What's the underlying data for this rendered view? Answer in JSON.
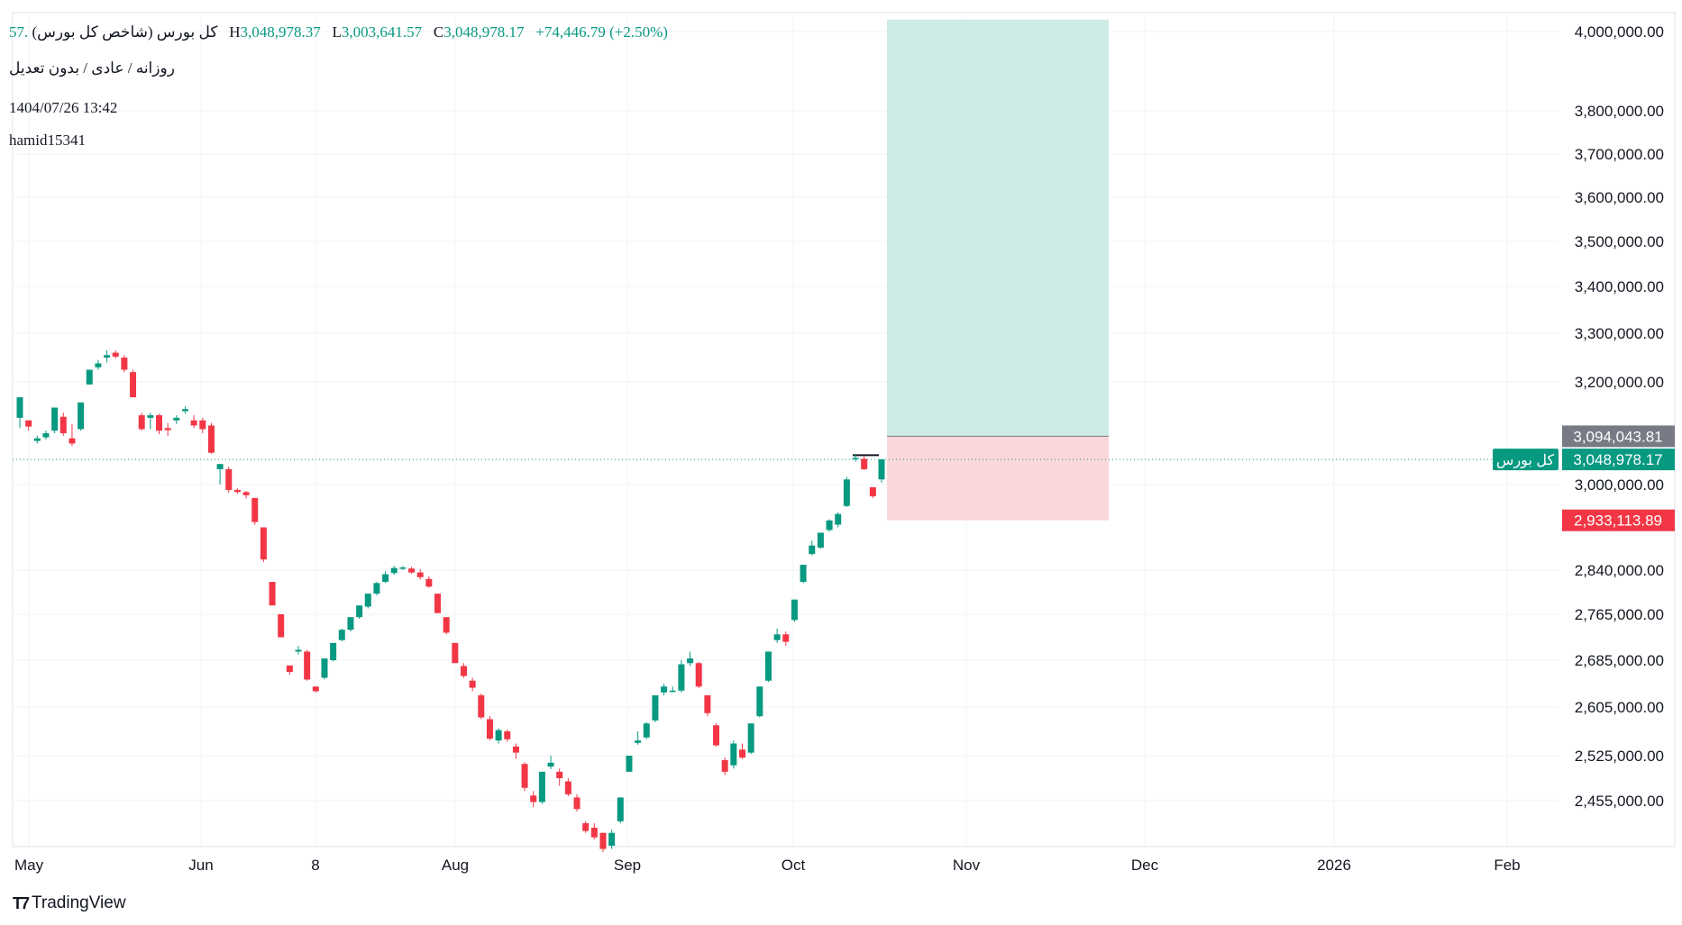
{
  "legend": {
    "symbol": "کل بورس (شاخص کل بورس)",
    "open_fragment": ".57",
    "high_label": "H",
    "high": "3,048,978.37",
    "low_label": "L",
    "low": "3,003,641.57",
    "close_label": "C",
    "close": "3,048,978.17",
    "change": "+74,446.79 (+2.50%)"
  },
  "subtitle": "روزانه / عادی / بدون تعدیل",
  "timestamp": "1404/07/26 13:42",
  "author": "hamid15341",
  "branding": "TradingView",
  "colors": {
    "up": "#089981",
    "down": "#f23645",
    "target_zone": "#cfebe5",
    "stop_zone": "#fcd7da",
    "price_line": "#089981",
    "grid": "#f0f3fa",
    "gray_label": "#787b86"
  },
  "chart_data": {
    "type": "candlestick",
    "symbol": "کل بورس",
    "x_tick_labels": [
      "May",
      "Jun",
      "8",
      "Aug",
      "Sep",
      "Oct",
      "Nov",
      "Dec",
      "2026",
      "Feb"
    ],
    "y_tick_labels": [
      "4,000,000.00",
      "3,800,000.00",
      "3,700,000.00",
      "3,600,000.00",
      "3,500,000.00",
      "3,400,000.00",
      "3,300,000.00",
      "3,200,000.00",
      "3,000,000.00",
      "2,840,000.00",
      "2,765,000.00",
      "2,685,000.00",
      "2,605,000.00",
      "2,525,000.00",
      "2,455,000.00"
    ],
    "price_labels": {
      "entry": "3,094,043.81",
      "current_tag": "کل بورس",
      "current": "3,048,978.17",
      "stop": "2,933,113.89"
    },
    "last_close": 3048978.17,
    "long_position": {
      "entry": 3094043.81,
      "stop": 2933113.89,
      "target": 4030000
    },
    "candles": [
      [
        3130000,
        3170000,
        3110000,
        3170000
      ],
      [
        3125000,
        3125000,
        3105000,
        3113000
      ],
      [
        3085000,
        3095000,
        3080000,
        3090000
      ],
      [
        3092000,
        3105000,
        3088000,
        3100000
      ],
      [
        3105000,
        3150000,
        3100000,
        3150000
      ],
      [
        3132000,
        3140000,
        3095000,
        3100000
      ],
      [
        3090000,
        3118000,
        3075000,
        3080000
      ],
      [
        3108000,
        3160000,
        3105000,
        3160000
      ],
      [
        3195000,
        3225000,
        3195000,
        3225000
      ],
      [
        3230000,
        3245000,
        3225000,
        3238000
      ],
      [
        3250000,
        3265000,
        3240000,
        3255000
      ],
      [
        3260000,
        3265000,
        3248000,
        3252000
      ],
      [
        3250000,
        3255000,
        3220000,
        3225000
      ],
      [
        3220000,
        3225000,
        3170000,
        3170000
      ],
      [
        3135000,
        3140000,
        3105000,
        3108000
      ],
      [
        3130000,
        3140000,
        3108000,
        3135000
      ],
      [
        3135000,
        3138000,
        3098000,
        3105000
      ],
      [
        3110000,
        3120000,
        3095000,
        3106000
      ],
      [
        3125000,
        3135000,
        3118000,
        3130000
      ],
      [
        3143000,
        3152000,
        3138000,
        3147000
      ],
      [
        3125000,
        3135000,
        3110000,
        3115000
      ],
      [
        3125000,
        3130000,
        3100000,
        3108000
      ],
      [
        3115000,
        3120000,
        3060000,
        3062000
      ],
      [
        3030000,
        3040000,
        3000000,
        3040000
      ],
      [
        3030000,
        3035000,
        2985000,
        2990000
      ],
      [
        2990000,
        2993000,
        2983000,
        2986000
      ],
      [
        2986000,
        2988000,
        2974000,
        2980000
      ],
      [
        2975000,
        2975000,
        2925000,
        2930000
      ],
      [
        2920000,
        2920000,
        2855000,
        2860000
      ],
      [
        2820000,
        2820000,
        2780000,
        2780000
      ],
      [
        2765000,
        2765000,
        2725000,
        2725000
      ],
      [
        2676000,
        2676000,
        2660000,
        2665000
      ],
      [
        2700000,
        2710000,
        2695000,
        2703000
      ],
      [
        2700000,
        2703000,
        2650000,
        2652000
      ],
      [
        2640000,
        2640000,
        2630000,
        2632000
      ],
      [
        2655000,
        2688000,
        2652000,
        2688000
      ],
      [
        2685000,
        2715000,
        2683000,
        2715000
      ],
      [
        2720000,
        2740000,
        2718000,
        2738000
      ],
      [
        2738000,
        2760000,
        2735000,
        2760000
      ],
      [
        2760000,
        2780000,
        2757000,
        2780000
      ],
      [
        2778000,
        2800000,
        2775000,
        2800000
      ],
      [
        2800000,
        2820000,
        2797000,
        2818000
      ],
      [
        2820000,
        2838000,
        2818000,
        2833000
      ],
      [
        2835000,
        2848000,
        2832000,
        2844000
      ],
      [
        2843000,
        2848000,
        2840000,
        2845000
      ],
      [
        2843000,
        2846000,
        2834000,
        2836000
      ],
      [
        2836000,
        2842000,
        2824000,
        2828000
      ],
      [
        2825000,
        2830000,
        2810000,
        2812000
      ],
      [
        2800000,
        2800000,
        2767000,
        2767000
      ],
      [
        2760000,
        2760000,
        2730000,
        2733000
      ],
      [
        2715000,
        2715000,
        2680000,
        2680000
      ],
      [
        2675000,
        2680000,
        2655000,
        2658000
      ],
      [
        2650000,
        2655000,
        2632000,
        2638000
      ],
      [
        2625000,
        2628000,
        2585000,
        2588000
      ],
      [
        2585000,
        2590000,
        2550000,
        2553000
      ],
      [
        2550000,
        2570000,
        2545000,
        2567000
      ],
      [
        2565000,
        2568000,
        2548000,
        2552000
      ],
      [
        2540000,
        2545000,
        2520000,
        2530000
      ],
      [
        2512000,
        2515000,
        2470000,
        2475000
      ],
      [
        2463000,
        2470000,
        2445000,
        2453000
      ],
      [
        2453000,
        2500000,
        2450000,
        2500000
      ],
      [
        2508000,
        2525000,
        2504000,
        2514000
      ],
      [
        2500000,
        2505000,
        2478000,
        2490000
      ],
      [
        2485000,
        2490000,
        2462000,
        2465000
      ],
      [
        2460000,
        2465000,
        2438000,
        2442000
      ],
      [
        2420000,
        2423000,
        2405000,
        2408000
      ],
      [
        2413000,
        2420000,
        2395000,
        2398000
      ],
      [
        2405000,
        2405000,
        2375000,
        2380000
      ],
      [
        2385000,
        2410000,
        2380000,
        2405000
      ],
      [
        2423000,
        2460000,
        2420000,
        2460000
      ],
      [
        2500000,
        2525000,
        2500000,
        2525000
      ],
      [
        2546000,
        2565000,
        2543000,
        2550000
      ],
      [
        2555000,
        2580000,
        2552000,
        2578000
      ],
      [
        2583000,
        2625000,
        2580000,
        2625000
      ],
      [
        2630000,
        2645000,
        2625000,
        2640000
      ],
      [
        2633000,
        2640000,
        2630000,
        2633000
      ],
      [
        2633000,
        2685000,
        2630000,
        2678000
      ],
      [
        2680000,
        2700000,
        2675000,
        2688000
      ],
      [
        2680000,
        2682000,
        2637000,
        2640000
      ],
      [
        2625000,
        2625000,
        2590000,
        2595000
      ],
      [
        2575000,
        2578000,
        2540000,
        2542000
      ],
      [
        2518000,
        2522000,
        2495000,
        2500000
      ],
      [
        2510000,
        2550000,
        2505000,
        2545000
      ],
      [
        2535000,
        2545000,
        2520000,
        2522000
      ],
      [
        2530000,
        2578000,
        2528000,
        2578000
      ],
      [
        2590000,
        2640000,
        2588000,
        2640000
      ],
      [
        2650000,
        2700000,
        2648000,
        2700000
      ],
      [
        2720000,
        2740000,
        2715000,
        2730000
      ],
      [
        2730000,
        2735000,
        2710000,
        2717000
      ],
      [
        2755000,
        2790000,
        2752000,
        2790000
      ],
      [
        2820000,
        2850000,
        2818000,
        2850000
      ],
      [
        2870000,
        2895000,
        2868000,
        2886000
      ],
      [
        2882000,
        2910000,
        2880000,
        2910000
      ],
      [
        2915000,
        2935000,
        2912000,
        2933000
      ],
      [
        2925000,
        2948000,
        2920000,
        2945000
      ],
      [
        2960000,
        3015000,
        2958000,
        3010000
      ],
      [
        3050000,
        3060000,
        3045000,
        3052000
      ],
      [
        3050000,
        3056000,
        3028000,
        3030000
      ],
      [
        2995000,
        2995000,
        2975000,
        2978000
      ],
      [
        3010000,
        3048978,
        3003642,
        3048978
      ]
    ]
  }
}
